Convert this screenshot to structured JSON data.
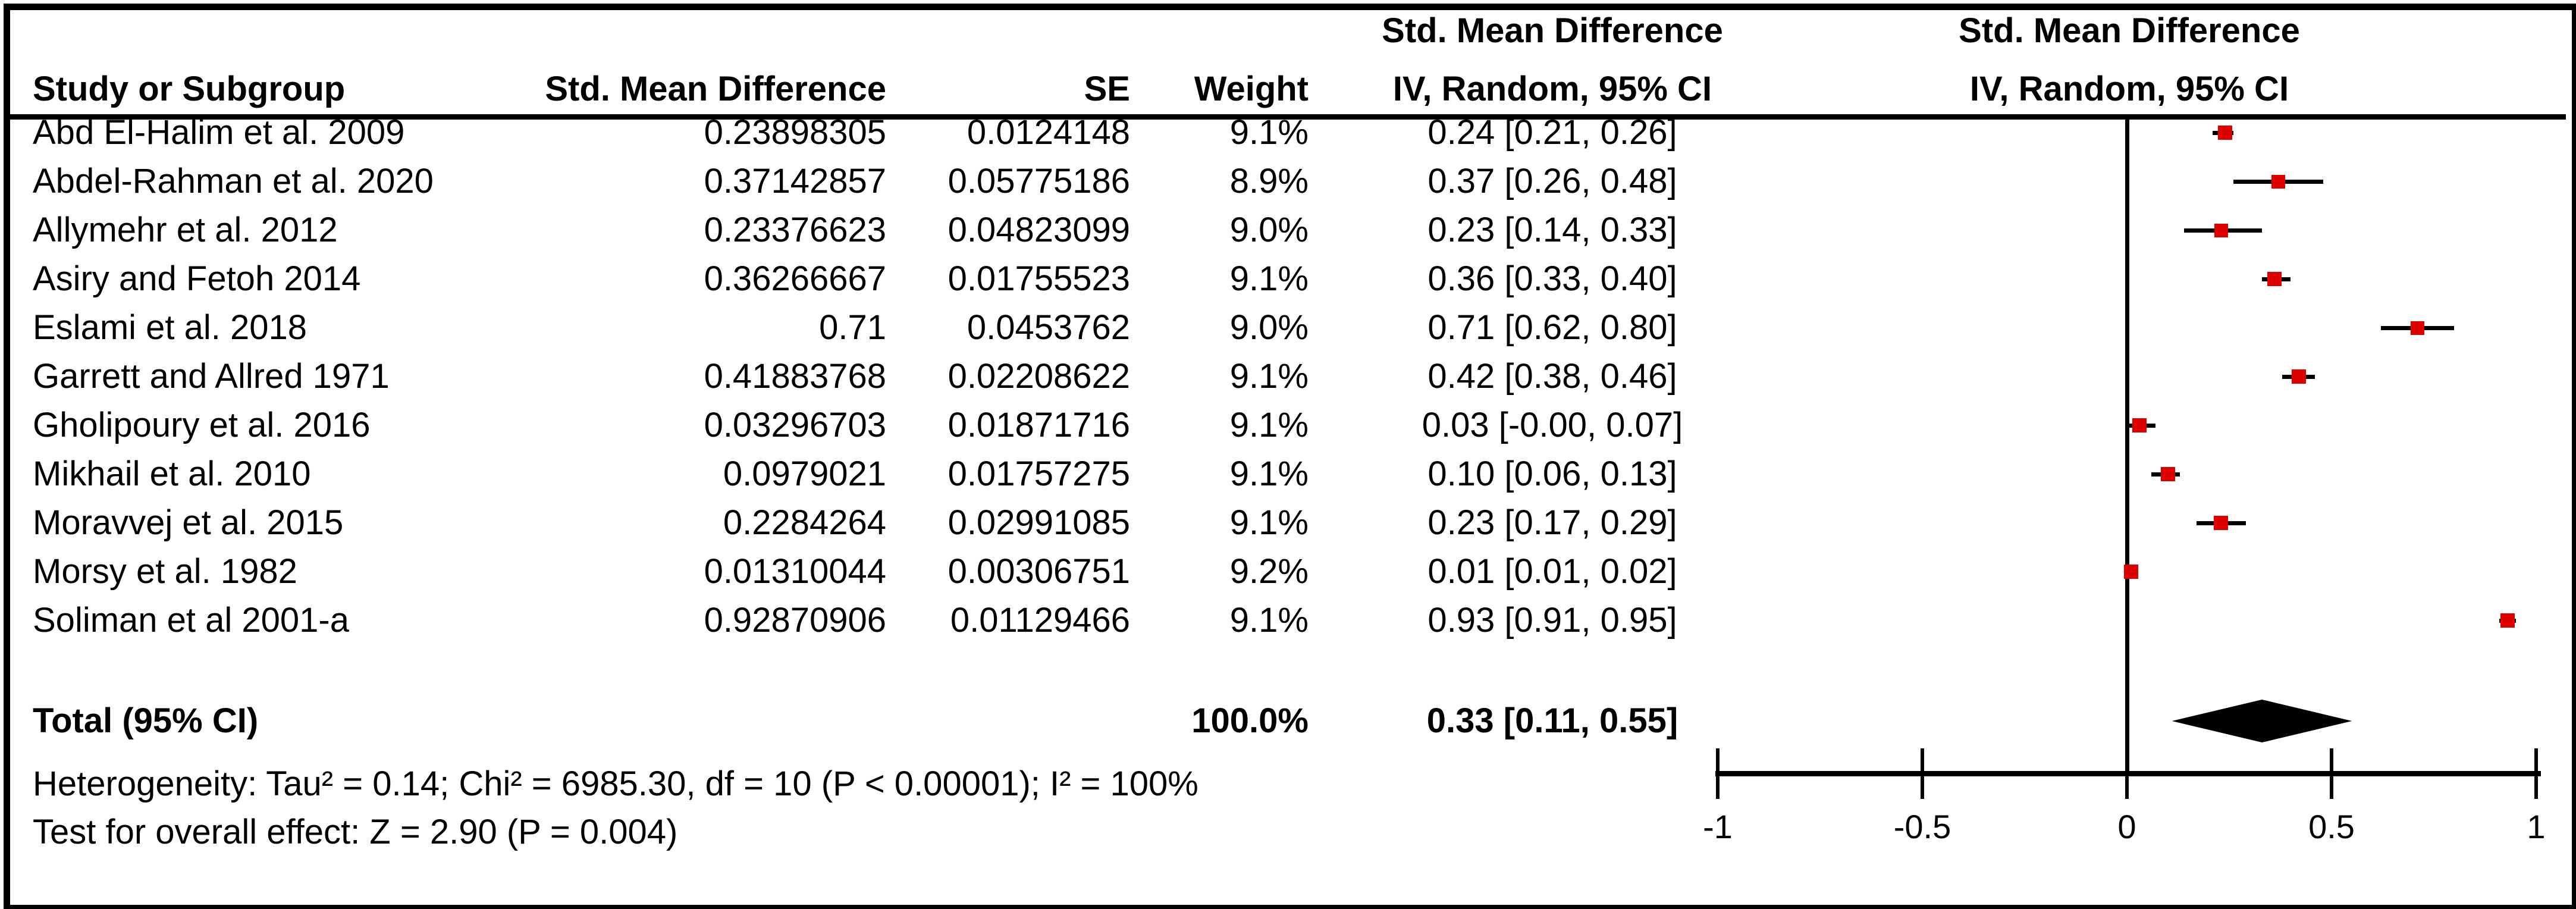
{
  "colors": {
    "marker_red": "#dd0000",
    "ink": "#000000",
    "background": "#ffffff"
  },
  "table": {
    "headers": {
      "study": "Study or Subgroup",
      "smd": "Std. Mean Difference",
      "se": "SE",
      "weight": "Weight",
      "ci_group_title": "Std. Mean Difference",
      "ci_subtitle": "IV, Random, 95% CI",
      "plot_group_title": "Std. Mean Difference",
      "plot_subtitle": "IV, Random, 95% CI"
    },
    "total": {
      "label": "Total (95% CI)",
      "weight": "100.0%",
      "ci": "0.33 [0.11, 0.55]"
    },
    "footer": {
      "heterogeneity": "Heterogeneity: Tau² = 0.14; Chi² = 6985.30, df = 10 (P < 0.00001); I² = 100%",
      "overall_effect": "Test for overall effect: Z = 2.90 (P = 0.004)"
    }
  },
  "chart_data": {
    "type": "forest",
    "effect_measure": "Std. Mean Difference",
    "model": "IV, Random, 95% CI",
    "studies": [
      {
        "name": "Abd El-Halim et al. 2009",
        "smd": "0.23898305",
        "se": "0.0124148",
        "weight": "9.1%",
        "weight_pct": 9.1,
        "ci_text": "0.24 [0.21, 0.26]",
        "est": 0.24,
        "lo": 0.21,
        "hi": 0.26
      },
      {
        "name": "Abdel-Rahman et al. 2020",
        "smd": "0.37142857",
        "se": "0.05775186",
        "weight": "8.9%",
        "weight_pct": 8.9,
        "ci_text": "0.37 [0.26, 0.48]",
        "est": 0.37,
        "lo": 0.26,
        "hi": 0.48
      },
      {
        "name": "Allymehr et al. 2012",
        "smd": "0.23376623",
        "se": "0.04823099",
        "weight": "9.0%",
        "weight_pct": 9.0,
        "ci_text": "0.23 [0.14, 0.33]",
        "est": 0.23,
        "lo": 0.14,
        "hi": 0.33
      },
      {
        "name": "Asiry and Fetoh 2014",
        "smd": "0.36266667",
        "se": "0.01755523",
        "weight": "9.1%",
        "weight_pct": 9.1,
        "ci_text": "0.36 [0.33, 0.40]",
        "est": 0.36,
        "lo": 0.33,
        "hi": 0.4
      },
      {
        "name": "Eslami et al. 2018",
        "smd": "0.71",
        "se": "0.0453762",
        "weight": "9.0%",
        "weight_pct": 9.0,
        "ci_text": "0.71 [0.62, 0.80]",
        "est": 0.71,
        "lo": 0.62,
        "hi": 0.8
      },
      {
        "name": "Garrett and Allred 1971",
        "smd": "0.41883768",
        "se": "0.02208622",
        "weight": "9.1%",
        "weight_pct": 9.1,
        "ci_text": "0.42 [0.38, 0.46]",
        "est": 0.42,
        "lo": 0.38,
        "hi": 0.46
      },
      {
        "name": "Gholipoury et al. 2016",
        "smd": "0.03296703",
        "se": "0.01871716",
        "weight": "9.1%",
        "weight_pct": 9.1,
        "ci_text": "0.03 [-0.00, 0.07]",
        "est": 0.03,
        "lo": -0.004,
        "hi": 0.07
      },
      {
        "name": "Mikhail et al. 2010",
        "smd": "0.0979021",
        "se": "0.01757275",
        "weight": "9.1%",
        "weight_pct": 9.1,
        "ci_text": "0.10 [0.06, 0.13]",
        "est": 0.1,
        "lo": 0.06,
        "hi": 0.13
      },
      {
        "name": "Moravvej et al. 2015",
        "smd": "0.2284264",
        "se": "0.02991085",
        "weight": "9.1%",
        "weight_pct": 9.1,
        "ci_text": "0.23 [0.17, 0.29]",
        "est": 0.23,
        "lo": 0.17,
        "hi": 0.29
      },
      {
        "name": "Morsy et al. 1982",
        "smd": "0.01310044",
        "se": "0.00306751",
        "weight": "9.2%",
        "weight_pct": 9.2,
        "ci_text": "0.01 [0.01, 0.02]",
        "est": 0.01,
        "lo": 0.01,
        "hi": 0.02
      },
      {
        "name": "Soliman et al 2001-a",
        "smd": "0.92870906",
        "se": "0.01129466",
        "weight": "9.1%",
        "weight_pct": 9.1,
        "ci_text": "0.93 [0.91, 0.95]",
        "est": 0.93,
        "lo": 0.91,
        "hi": 0.95
      }
    ],
    "total": {
      "est": 0.33,
      "lo": 0.11,
      "hi": 0.55
    },
    "x_axis": {
      "range": [
        -1,
        1
      ],
      "ticks": [
        -1,
        -0.5,
        0,
        0.5,
        1
      ],
      "tick_labels": [
        "-1",
        "-0.5",
        "0",
        "0.5",
        "1"
      ],
      "grid": false
    }
  }
}
